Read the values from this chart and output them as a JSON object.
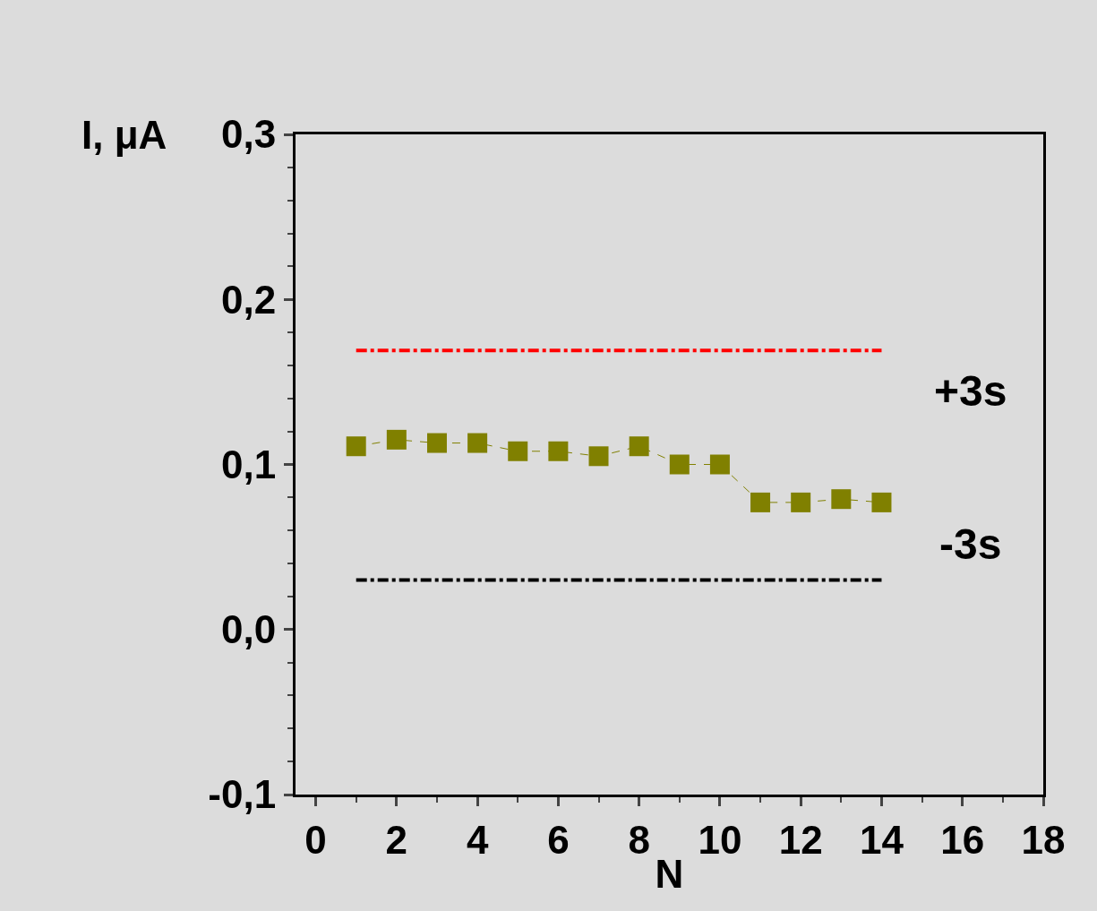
{
  "chart_data": {
    "type": "line",
    "xlabel": "N",
    "ylabel": "I, μA",
    "x": [
      1,
      2,
      3,
      4,
      5,
      6,
      7,
      8,
      9,
      10,
      11,
      12,
      13,
      14
    ],
    "series": [
      {
        "color": "#808000",
        "values": [
          0.111,
          0.115,
          0.113,
          0.113,
          0.108,
          0.108,
          0.105,
          0.111,
          0.1,
          0.1,
          0.077,
          0.077,
          0.079,
          0.077
        ]
      }
    ],
    "marker": "square",
    "line_style": "dashed",
    "ref_lines": [
      {
        "axis": "y",
        "value": 0.169,
        "label": "+3s",
        "color": "#ff0000",
        "line_style": "dashdot"
      },
      {
        "axis": "y",
        "value": 0.03,
        "label": "-3s",
        "color": "#000000",
        "line_style": "dashdot"
      }
    ],
    "xlim": [
      -0.5,
      18
    ],
    "xticks": [
      0,
      2,
      4,
      6,
      8,
      10,
      12,
      14,
      16,
      18
    ],
    "ylim": [
      -0.1,
      0.3
    ],
    "yticks": [
      {
        "value": -0.1,
        "label": "-0,1"
      },
      {
        "value": 0.0,
        "label": "0,0"
      },
      {
        "value": 0.1,
        "label": "0,1"
      },
      {
        "value": 0.2,
        "label": "0,2"
      },
      {
        "value": 0.3,
        "label": "0,3"
      }
    ],
    "grid": false
  }
}
